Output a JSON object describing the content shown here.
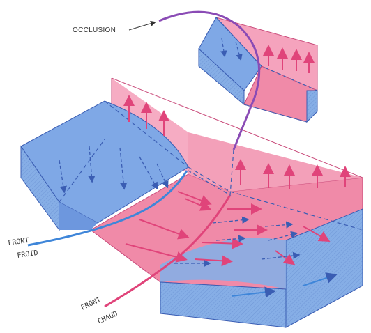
{
  "labels": {
    "occlusion": "OCCLUSION",
    "front_froid_line1": "FRONT",
    "front_froid_line2": "FROID",
    "front_chaud_line1": "FRONT",
    "front_chaud_line2": "CHAUD"
  },
  "colors": {
    "cold_air": "#7fa8e6",
    "warm_air": "#f08aa8",
    "cold_front_line": "#3f86d9",
    "warm_front_line": "#e0447a",
    "occlusion_line": "#8a4bb5",
    "outline": "#3a5db3"
  }
}
